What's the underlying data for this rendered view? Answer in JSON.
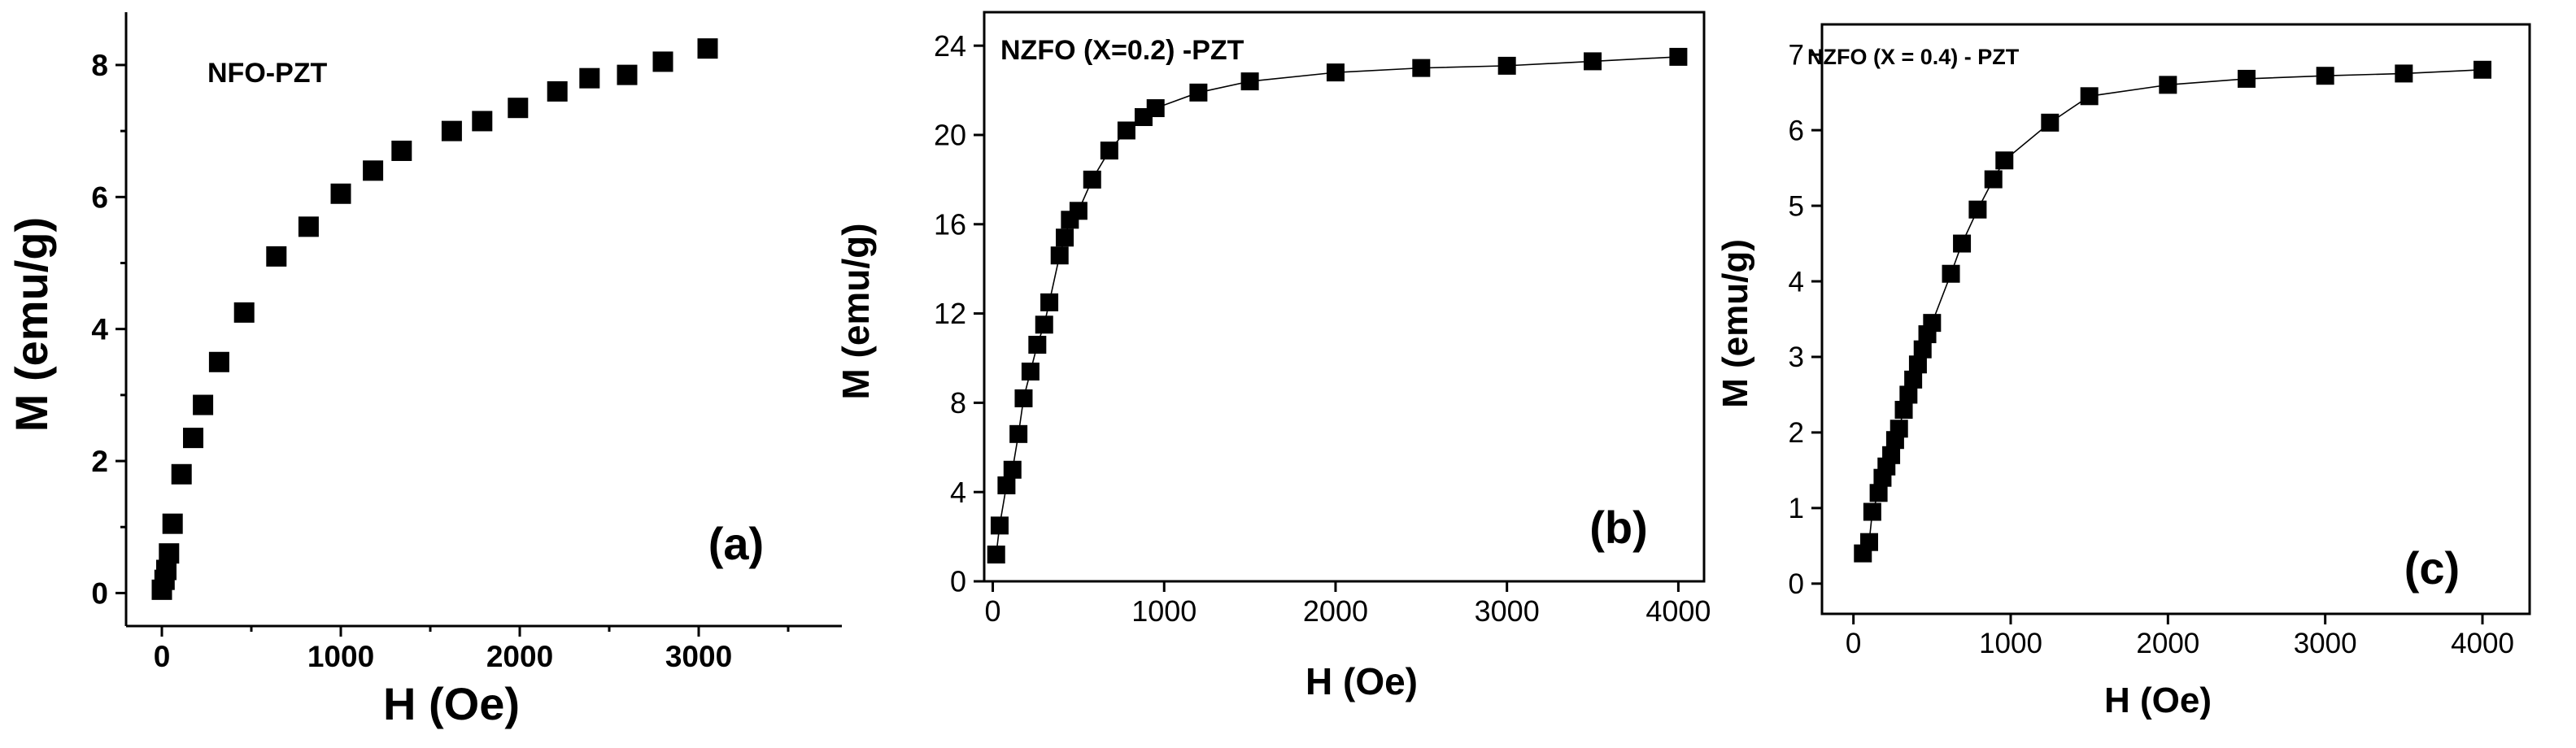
{
  "chart_data": [
    {
      "type": "scatter",
      "title": "NFO-PZT",
      "panel_label": "(a)",
      "xlabel": "H (Oe)",
      "ylabel": "M (emu/g)",
      "xlim": [
        -200,
        3800
      ],
      "ylim": [
        -0.5,
        8.8
      ],
      "xticks": [
        0,
        1000,
        2000,
        3000
      ],
      "yticks": [
        0,
        2,
        4,
        6,
        8
      ],
      "x_minor": true,
      "y_minor": true,
      "axes_style": "L",
      "grid": false,
      "connect_line": false,
      "series": [
        {
          "x": [
            0,
            15,
            25,
            40,
            60,
            110,
            175,
            230,
            320,
            460,
            640,
            820,
            1000,
            1180,
            1340,
            1620,
            1790,
            1990,
            2210,
            2390,
            2600,
            2800,
            3050
          ],
          "y": [
            0.05,
            0.2,
            0.35,
            0.6,
            1.05,
            1.8,
            2.35,
            2.85,
            3.5,
            4.25,
            5.1,
            5.55,
            6.05,
            6.4,
            6.7,
            7.0,
            7.15,
            7.35,
            7.6,
            7.8,
            7.85,
            8.05,
            8.25
          ]
        }
      ]
    },
    {
      "type": "scatter",
      "title": "NZFO (X=0.2) -PZT",
      "panel_label": "(b)",
      "xlabel": "H (Oe)",
      "ylabel": "M (emu/g)",
      "xlim": [
        -50,
        4150
      ],
      "ylim": [
        0,
        25.5
      ],
      "xticks": [
        0,
        1000,
        2000,
        3000,
        4000
      ],
      "yticks": [
        0,
        4,
        8,
        12,
        16,
        20,
        24
      ],
      "x_minor": false,
      "y_minor": false,
      "axes_style": "box",
      "grid": false,
      "connect_line": true,
      "series": [
        {
          "x": [
            20,
            40,
            80,
            115,
            150,
            180,
            220,
            260,
            300,
            330,
            390,
            420,
            450,
            500,
            580,
            680,
            780,
            880,
            950,
            1200,
            1500,
            2000,
            2500,
            3000,
            3500,
            4000
          ],
          "y": [
            1.2,
            2.5,
            4.3,
            5.0,
            6.6,
            8.2,
            9.4,
            10.6,
            11.5,
            12.5,
            14.6,
            15.4,
            16.2,
            16.6,
            18.0,
            19.3,
            20.2,
            20.8,
            21.2,
            21.9,
            22.4,
            22.8,
            23.0,
            23.1,
            23.3,
            23.5
          ]
        }
      ]
    },
    {
      "type": "scatter",
      "title": "NZFO (X = 0.4) - PZT",
      "panel_label": "(c)",
      "xlabel": "H (Oe)",
      "ylabel": "M (emu/g)",
      "xlim": [
        -200,
        4300
      ],
      "ylim": [
        -0.4,
        7.4
      ],
      "xticks": [
        0,
        1000,
        2000,
        3000,
        4000
      ],
      "yticks": [
        0,
        1,
        2,
        3,
        4,
        5,
        6,
        7
      ],
      "x_minor": false,
      "y_minor": false,
      "axes_style": "box",
      "grid": false,
      "connect_line": true,
      "series": [
        {
          "x": [
            60,
            100,
            120,
            160,
            185,
            210,
            240,
            265,
            290,
            320,
            350,
            380,
            410,
            440,
            470,
            500,
            620,
            690,
            790,
            890,
            960,
            1250,
            1500,
            2000,
            2500,
            3000,
            3500,
            4000
          ],
          "y": [
            0.4,
            0.55,
            0.95,
            1.2,
            1.4,
            1.55,
            1.7,
            1.9,
            2.05,
            2.3,
            2.5,
            2.7,
            2.9,
            3.1,
            3.3,
            3.45,
            4.1,
            4.5,
            4.95,
            5.35,
            5.6,
            6.1,
            6.45,
            6.6,
            6.68,
            6.72,
            6.75,
            6.8
          ]
        }
      ]
    }
  ]
}
